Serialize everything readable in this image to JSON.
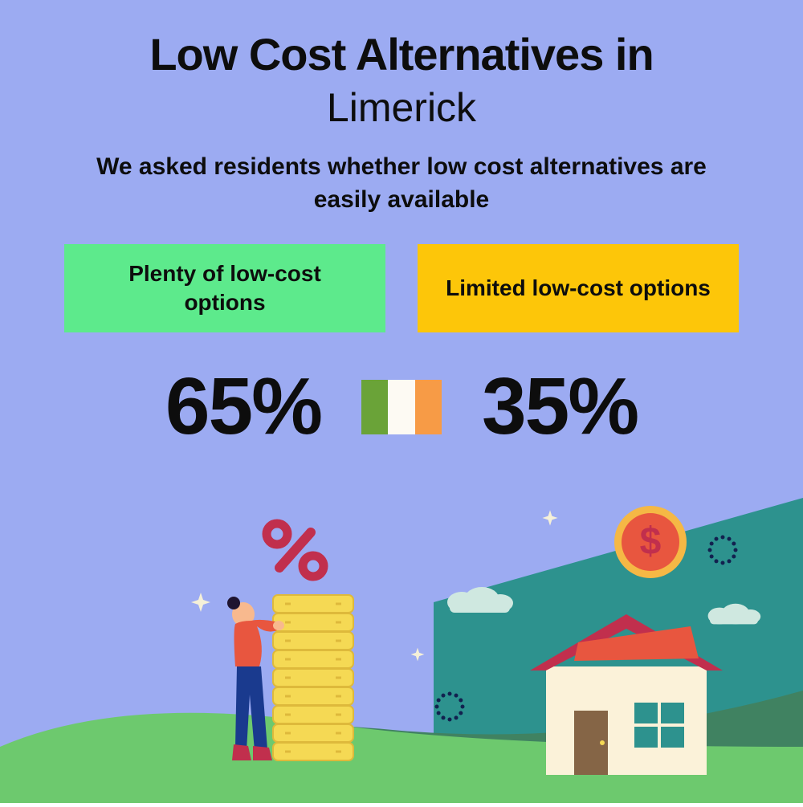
{
  "background_color": "#9cabf2",
  "title": {
    "line1": "Low Cost Alternatives in",
    "line2": "Limerick",
    "color": "#0d0d0d",
    "line1_weight": 900,
    "line1_fontsize": 56,
    "line2_weight": 400,
    "line2_fontsize": 50
  },
  "subheading": {
    "text": "We asked residents whether low cost alternatives are easily available",
    "color": "#0d0d0d",
    "fontsize": 30,
    "weight": 700
  },
  "options": {
    "left": {
      "label": "Plenty of low-cost options",
      "bg_color": "#5dea8c",
      "text_color": "#0d0d0d"
    },
    "right": {
      "label": "Limited low-cost options",
      "bg_color": "#fdc609",
      "text_color": "#0d0d0d"
    }
  },
  "stats": {
    "left_value": "65%",
    "right_value": "35%",
    "color": "#0d0d0d",
    "fontsize": 100
  },
  "flag": {
    "stripe1": "#6aa338",
    "stripe2": "#fdfaf3",
    "stripe3": "#f79b46"
  },
  "illustration": {
    "hill_light": "#6dc96e",
    "hill_dark": "#408261",
    "sky_triangle": "#2d928e",
    "person_top": "#e8563f",
    "person_bottom": "#1a3a8e",
    "person_skin": "#f8b98e",
    "person_hair": "#1f1430",
    "coin_fill": "#f5d954",
    "coin_line": "#deb93b",
    "percent_color": "#c12f4d",
    "house_wall": "#fbf2d9",
    "house_roof": "#c12f4d",
    "house_roof_top": "#e8563f",
    "house_window": "#2d928e",
    "house_door": "#856546",
    "dollar_coin_outer": "#f5b845",
    "dollar_coin_inner": "#e8563f",
    "dollar_sign": "#c12f4d",
    "cloud_color": "#cfe8e0",
    "sparkle_color": "#f5f0d8",
    "dotted_circle": "#12214f"
  }
}
